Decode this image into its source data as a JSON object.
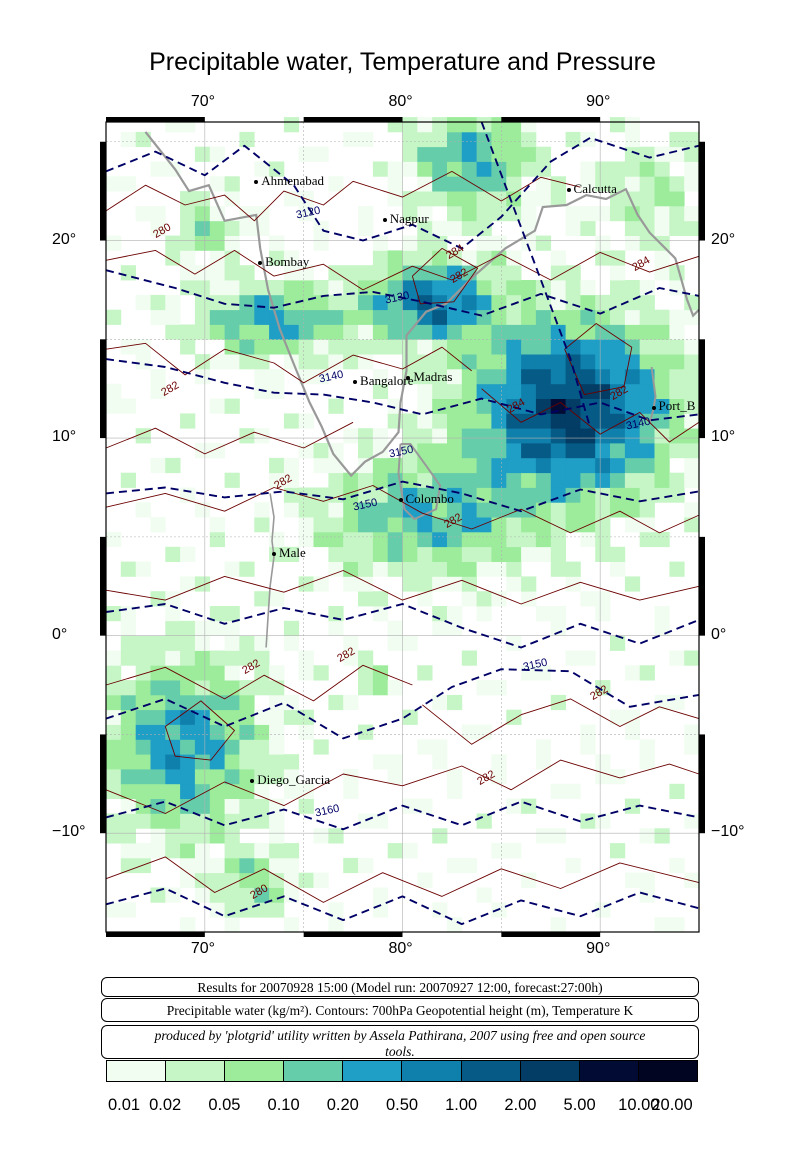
{
  "title": "Precipitable water, Temperature and Pressure",
  "map": {
    "lon_range": [
      65,
      95
    ],
    "lat_range": [
      -15,
      26
    ],
    "lon_ticks": [
      {
        "value": 70,
        "label": "70°"
      },
      {
        "value": 80,
        "label": "80°"
      },
      {
        "value": 90,
        "label": "90°"
      }
    ],
    "lat_ticks": [
      {
        "value": 20,
        "label": "20°"
      },
      {
        "value": 10,
        "label": "10°"
      },
      {
        "value": 0,
        "label": "0°"
      },
      {
        "value": -10,
        "label": "−10°"
      }
    ],
    "cities": [
      {
        "name": "Ahmenabad",
        "lon": 72.6,
        "lat": 23.0
      },
      {
        "name": "Calcutta",
        "lon": 88.4,
        "lat": 22.6
      },
      {
        "name": "Nagpur",
        "lon": 79.1,
        "lat": 21.1
      },
      {
        "name": "Bombay",
        "lon": 72.8,
        "lat": 18.9
      },
      {
        "name": "Madras",
        "lon": 80.3,
        "lat": 13.1
      },
      {
        "name": "Bangalore",
        "lon": 77.6,
        "lat": 12.9
      },
      {
        "name": "Port_B",
        "lon": 92.7,
        "lat": 11.6
      },
      {
        "name": "Colombo",
        "lon": 79.9,
        "lat": 6.9
      },
      {
        "name": "Male",
        "lon": 73.5,
        "lat": 4.2
      },
      {
        "name": "Diego_Garcia",
        "lon": 72.4,
        "lat": -7.3
      }
    ],
    "height_labels": [
      {
        "text": "3120",
        "lon": 75.3,
        "lat": 21.3
      },
      {
        "text": "3130",
        "lon": 79.8,
        "lat": 17.0
      },
      {
        "text": "3140",
        "lon": 76.5,
        "lat": 13.0
      },
      {
        "text": "3140",
        "lon": 92.0,
        "lat": 10.6
      },
      {
        "text": "3150",
        "lon": 80.0,
        "lat": 9.2
      },
      {
        "text": "3150",
        "lon": 78.2,
        "lat": 6.5
      },
      {
        "text": "3150",
        "lon": 86.8,
        "lat": -1.6
      },
      {
        "text": "3160",
        "lon": 76.3,
        "lat": -9.0
      }
    ],
    "temp_labels": [
      {
        "text": "280",
        "lon": 67.9,
        "lat": 20.4
      },
      {
        "text": "284",
        "lon": 82.7,
        "lat": 19.3
      },
      {
        "text": "282",
        "lon": 82.9,
        "lat": 18.1
      },
      {
        "text": "284",
        "lon": 92.1,
        "lat": 18.7
      },
      {
        "text": "282",
        "lon": 68.3,
        "lat": 12.4
      },
      {
        "text": "282",
        "lon": 91.0,
        "lat": 12.2
      },
      {
        "text": "284",
        "lon": 85.8,
        "lat": 11.5
      },
      {
        "text": "282",
        "lon": 74.0,
        "lat": 7.7
      },
      {
        "text": "282",
        "lon": 82.6,
        "lat": 5.7
      },
      {
        "text": "282",
        "lon": 72.4,
        "lat": -1.7
      },
      {
        "text": "282",
        "lon": 77.2,
        "lat": -1.1
      },
      {
        "text": "282",
        "lon": 84.3,
        "lat": -7.3
      },
      {
        "text": "282",
        "lon": 90.0,
        "lat": -3.0
      },
      {
        "text": "280",
        "lon": 72.8,
        "lat": -13.1
      }
    ]
  },
  "info": {
    "line1": "Results for 20070928 15:00 (Model run: 20070927 12:00, forecast:27:00h)",
    "line2": "Precipitable water (kg/m²).  Contours: 700hPa Geopotential height (m), Temperature K",
    "line3": "produced by 'plotgrid' utility written by Assela Pathirana, 2007 using free and open source tools."
  },
  "colorbar": {
    "colors": [
      "#f1fdf1",
      "#c6f6c6",
      "#9cec9c",
      "#66cdaa",
      "#1f9fc6",
      "#0f80ab",
      "#065a86",
      "#033c64",
      "#020b34",
      "#020521"
    ],
    "ticks": [
      "0.01",
      "0.02",
      "0.05",
      "0.10",
      "0.20",
      "0.50",
      "1.00",
      "2.00",
      "5.00",
      "10.00",
      "20.00"
    ]
  },
  "colors": {
    "height_contour": "#000066",
    "temp_contour": "#6b0000",
    "coast": "#999999",
    "grid": "#b0b0b0"
  }
}
